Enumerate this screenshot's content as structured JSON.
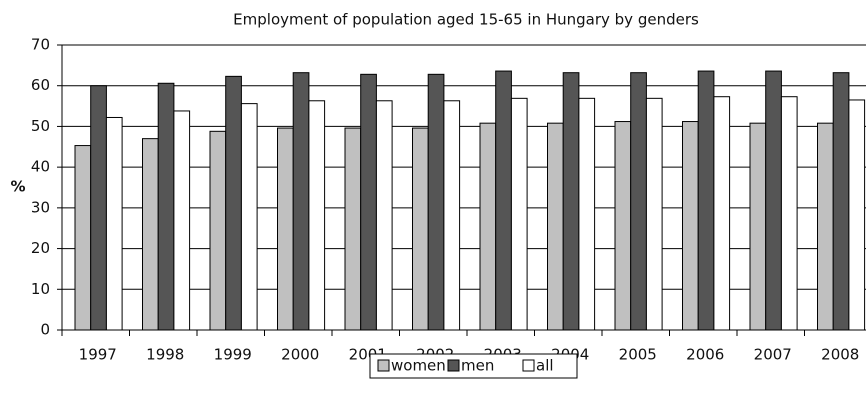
{
  "chart_data": {
    "type": "bar",
    "title": "Employment of population aged 15-65 in Hungary by genders",
    "y_label": "%",
    "categories": [
      "1997",
      "1998",
      "1999",
      "2000",
      "2001",
      "2002",
      "2003",
      "2004",
      "2005",
      "2006",
      "2007",
      "2008"
    ],
    "series": [
      {
        "name": "women",
        "color": "#c0c0c0",
        "values": [
          45.3,
          47,
          48.8,
          49.6,
          49.6,
          49.6,
          50.8,
          50.8,
          51.2,
          51.2,
          50.8,
          50.8
        ]
      },
      {
        "name": "men",
        "color": "#555555",
        "values": [
          60,
          60.6,
          62.3,
          63.2,
          62.8,
          62.8,
          63.6,
          63.2,
          63.2,
          63.6,
          63.6,
          63.2
        ]
      },
      {
        "name": "all",
        "color": "#ffffff",
        "values": [
          52.2,
          53.8,
          55.6,
          56.3,
          56.3,
          56.3,
          56.9,
          56.9,
          56.9,
          57.3,
          57.3,
          56.5
        ]
      }
    ],
    "ylim": [
      0,
      70
    ],
    "yticks": [
      0,
      10,
      20,
      30,
      40,
      50,
      60,
      70
    ],
    "grid": true,
    "legend": "bottom"
  }
}
